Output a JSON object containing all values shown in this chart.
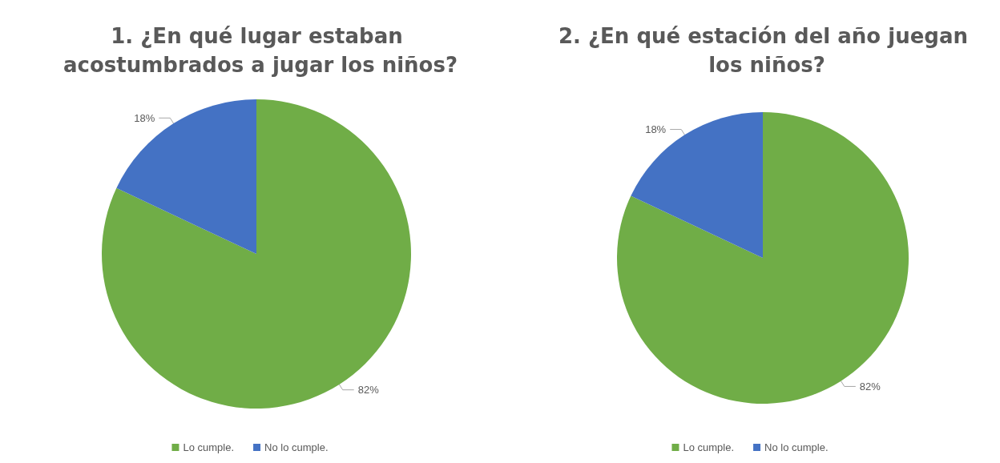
{
  "chart_data": [
    {
      "type": "pie",
      "title": "1. ¿En qué lugar estaban acostumbrados a jugar los niños?",
      "categories": [
        "Lo cumple.",
        "No lo cumple."
      ],
      "values": [
        82,
        18
      ],
      "colors": [
        "#70ad47",
        "#4472c4"
      ],
      "value_labels": [
        "82%",
        "18%"
      ],
      "legend": "bottom"
    },
    {
      "type": "pie",
      "title": "2. ¿En qué estación del año juegan los niños?",
      "categories": [
        "Lo cumple.",
        "No lo cumple."
      ],
      "values": [
        82,
        18
      ],
      "colors": [
        "#70ad47",
        "#4472c4"
      ],
      "value_labels": [
        "82%",
        "18%"
      ],
      "legend": "bottom"
    }
  ]
}
